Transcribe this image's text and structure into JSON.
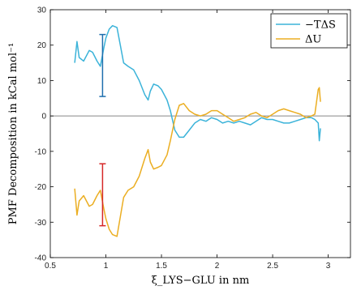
{
  "chart_data": {
    "type": "line",
    "title": "",
    "xlabel": "ξ_LYS−GLU in nm",
    "ylabel": "PMF Decomposition in kCal mol⁻¹",
    "xlim": [
      0.5,
      3.2
    ],
    "ylim": [
      -40,
      30
    ],
    "xticks": [
      0.5,
      1,
      1.5,
      2,
      2.5,
      3
    ],
    "yticks": [
      -40,
      -30,
      -20,
      -10,
      0,
      10,
      20,
      30
    ],
    "xtick_labels": [
      "0.5",
      "1",
      "1.5",
      "2",
      "2.5",
      "3"
    ],
    "ytick_labels": [
      "-40",
      "-30",
      "-20",
      "-10",
      "0",
      "10",
      "20",
      "30"
    ],
    "grid": false,
    "legend_position": "top-right",
    "zero_line": true,
    "series": [
      {
        "name": "−TΔS",
        "color": "#3bb3d9",
        "x": [
          0.72,
          0.74,
          0.76,
          0.8,
          0.85,
          0.88,
          0.92,
          0.95,
          0.98,
          1.0,
          1.03,
          1.06,
          1.1,
          1.13,
          1.16,
          1.2,
          1.25,
          1.3,
          1.35,
          1.38,
          1.4,
          1.43,
          1.47,
          1.5,
          1.55,
          1.58,
          1.62,
          1.66,
          1.7,
          1.75,
          1.8,
          1.85,
          1.9,
          1.95,
          2.0,
          2.05,
          2.1,
          2.15,
          2.2,
          2.25,
          2.3,
          2.35,
          2.4,
          2.45,
          2.5,
          2.55,
          2.6,
          2.65,
          2.7,
          2.75,
          2.8,
          2.85,
          2.88,
          2.91,
          2.92,
          2.93
        ],
        "values": [
          15,
          21,
          16.5,
          15.5,
          18.5,
          18,
          15.5,
          14,
          19,
          22,
          24.5,
          25.5,
          25,
          20,
          15,
          14,
          13,
          10,
          6,
          4.5,
          7,
          9,
          8.5,
          7.5,
          4.5,
          1.5,
          -4,
          -6,
          -6,
          -4,
          -2,
          -1,
          -1.5,
          -0.5,
          -1,
          -2,
          -1.5,
          -2,
          -1.5,
          -2,
          -2.5,
          -1.5,
          -0.5,
          -1,
          -1,
          -1.5,
          -2,
          -2,
          -1.5,
          -1,
          -0.5,
          -0.5,
          -1,
          -2,
          -7,
          -3.5
        ]
      },
      {
        "name": "ΔU",
        "color": "#ebae22",
        "x": [
          0.72,
          0.74,
          0.76,
          0.8,
          0.85,
          0.88,
          0.92,
          0.95,
          0.98,
          1.0,
          1.03,
          1.06,
          1.1,
          1.13,
          1.16,
          1.2,
          1.25,
          1.3,
          1.35,
          1.38,
          1.4,
          1.43,
          1.47,
          1.5,
          1.55,
          1.58,
          1.62,
          1.66,
          1.7,
          1.75,
          1.8,
          1.85,
          1.9,
          1.95,
          2.0,
          2.05,
          2.1,
          2.15,
          2.2,
          2.25,
          2.3,
          2.35,
          2.4,
          2.45,
          2.5,
          2.55,
          2.6,
          2.65,
          2.7,
          2.75,
          2.8,
          2.85,
          2.88,
          2.91,
          2.92,
          2.93
        ],
        "values": [
          -20.5,
          -28,
          -24,
          -22.5,
          -25.5,
          -25,
          -22.5,
          -21,
          -26,
          -29,
          -32,
          -33.5,
          -34,
          -28.5,
          -23,
          -21,
          -20,
          -17,
          -12,
          -9.5,
          -13,
          -15,
          -14.5,
          -14,
          -11,
          -7,
          -1,
          3,
          3.5,
          1.5,
          0.5,
          0,
          0.5,
          1.5,
          1.5,
          0.5,
          -0.5,
          -1.5,
          -1,
          -0.5,
          0.5,
          1,
          0,
          -0.5,
          0.5,
          1.5,
          2,
          1.5,
          1,
          0.5,
          -0.5,
          0,
          0.5,
          7.5,
          8,
          4
        ]
      }
    ],
    "error_bars": [
      {
        "x": 0.97,
        "low": 5.5,
        "high": 23,
        "color": "#1f6fae"
      },
      {
        "x": 0.97,
        "low": -31,
        "high": -13.5,
        "color": "#d62828"
      }
    ]
  }
}
